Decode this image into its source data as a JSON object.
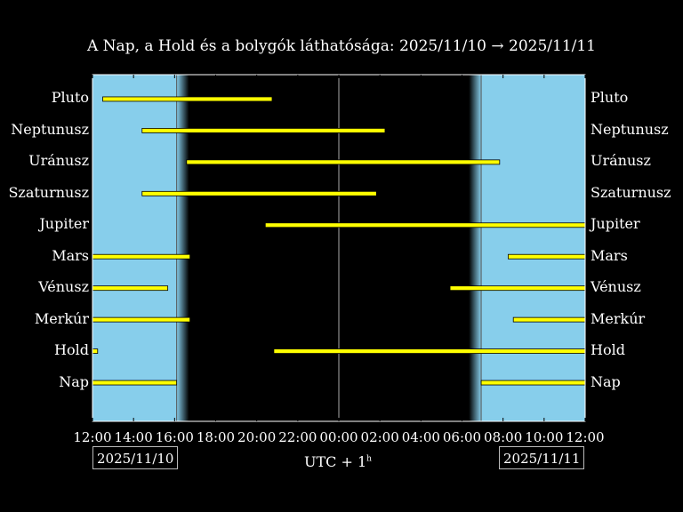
{
  "title": "A Nap, a Hold és a bolygók láthatósága: 2025/11/10 → 2025/11/11",
  "colors": {
    "day": "#87ceeb",
    "night": "#000000",
    "bar": "#ffff00",
    "frame": "#ffffff"
  },
  "x_label_main": "UTC + 1",
  "x_label_sup": "h",
  "start_date_label": "2025/11/10",
  "end_date_label": "2025/11/11",
  "chart_data": {
    "type": "bar",
    "orientation": "horizontal-ranges",
    "xlim": [
      "2025-11-10 12:00",
      "2025-11-11 12:00"
    ],
    "x_ticks": [
      "12:00",
      "14:00",
      "16:00",
      "18:00",
      "20:00",
      "22:00",
      "00:00",
      "02:00",
      "04:00",
      "06:00",
      "08:00",
      "10:00",
      "12:00"
    ],
    "sunset": "2025-11-10 16:06",
    "sunrise": "2025-11-11 06:56",
    "midnight": "2025-11-11 00:00",
    "twilight_minutes": 90,
    "bodies": [
      {
        "name": "Pluto",
        "ranges": [
          [
            "2025-11-10 12:30",
            "2025-11-10 20:45"
          ]
        ]
      },
      {
        "name": "Neptunusz",
        "ranges": [
          [
            "2025-11-10 14:25",
            "2025-11-11 02:15"
          ]
        ]
      },
      {
        "name": "Uránusz",
        "ranges": [
          [
            "2025-11-10 16:35",
            "2025-11-11 07:50"
          ]
        ]
      },
      {
        "name": "Szaturnusz",
        "ranges": [
          [
            "2025-11-10 14:25",
            "2025-11-11 01:50"
          ]
        ]
      },
      {
        "name": "Jupiter",
        "ranges": [
          [
            "2025-11-10 20:25",
            "2025-11-11 12:00"
          ]
        ]
      },
      {
        "name": "Mars",
        "ranges": [
          [
            "2025-11-10 12:00",
            "2025-11-10 16:45"
          ],
          [
            "2025-11-11 08:15",
            "2025-11-11 12:00"
          ]
        ]
      },
      {
        "name": "Vénusz",
        "ranges": [
          [
            "2025-11-10 12:00",
            "2025-11-10 15:40"
          ],
          [
            "2025-11-11 05:25",
            "2025-11-11 12:00"
          ]
        ]
      },
      {
        "name": "Merkúr",
        "ranges": [
          [
            "2025-11-10 12:00",
            "2025-11-10 16:45"
          ],
          [
            "2025-11-11 08:30",
            "2025-11-11 12:00"
          ]
        ]
      },
      {
        "name": "Hold",
        "ranges": [
          [
            "2025-11-10 12:00",
            "2025-11-10 12:15"
          ],
          [
            "2025-11-10 20:50",
            "2025-11-11 12:00"
          ]
        ]
      },
      {
        "name": "Nap",
        "ranges": [
          [
            "2025-11-10 12:00",
            "2025-11-10 16:06"
          ],
          [
            "2025-11-11 06:56",
            "2025-11-11 12:00"
          ]
        ]
      }
    ]
  }
}
